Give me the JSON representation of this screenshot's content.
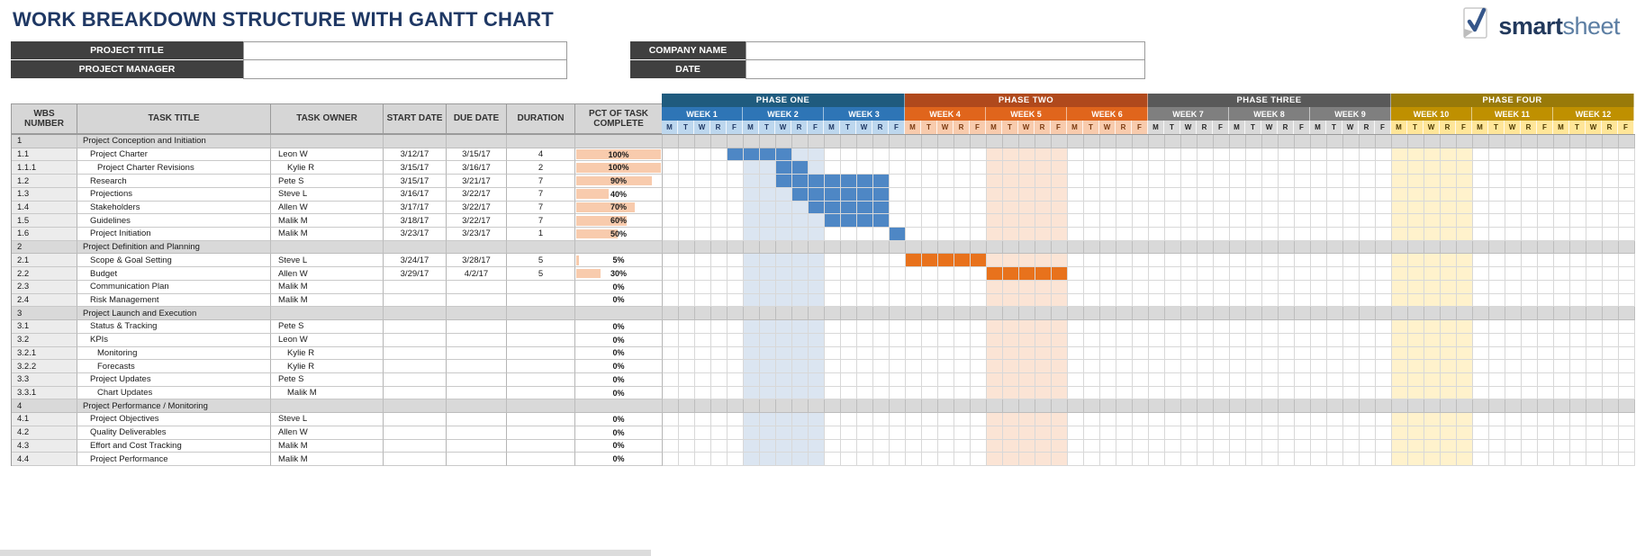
{
  "page": {
    "title": "WORK BREAKDOWN STRUCTURE WITH GANTT CHART"
  },
  "logo": {
    "brand_bold": "smart",
    "brand_light": "sheet",
    "icon": "checkmark-page-icon"
  },
  "info": {
    "left": [
      {
        "label": "PROJECT TITLE",
        "value": ""
      },
      {
        "label": "PROJECT MANAGER",
        "value": ""
      }
    ],
    "right": [
      {
        "label": "COMPANY NAME",
        "value": ""
      },
      {
        "label": "DATE",
        "value": ""
      }
    ]
  },
  "table": {
    "columns": [
      "WBS NUMBER",
      "TASK TITLE",
      "TASK OWNER",
      "START DATE",
      "DUE DATE",
      "DURATION",
      "PCT OF TASK COMPLETE"
    ]
  },
  "gantt": {
    "day_letters": [
      "M",
      "T",
      "W",
      "R",
      "F"
    ],
    "phases": [
      {
        "name": "PHASE ONE",
        "bar": "#1f5b7e",
        "week_bg": "#2e75b6",
        "day_bg": "#bdd7ee",
        "day_text": "#1f3864",
        "weeks": [
          "WEEK 1",
          "WEEK 2",
          "WEEK 3"
        ]
      },
      {
        "name": "PHASE TWO",
        "bar": "#b0491c",
        "week_bg": "#e0651c",
        "day_bg": "#f8cbad",
        "day_text": "#7b3a10",
        "weeks": [
          "WEEK 4",
          "WEEK 5",
          "WEEK 6"
        ]
      },
      {
        "name": "PHASE THREE",
        "bar": "#595959",
        "week_bg": "#7f7f7f",
        "day_bg": "#d9d9d9",
        "day_text": "#262626",
        "weeks": [
          "WEEK 7",
          "WEEK 8",
          "WEEK 9"
        ]
      },
      {
        "name": "PHASE FOUR",
        "bar": "#997a09",
        "week_bg": "#bf9000",
        "day_bg": "#ffe699",
        "day_text": "#4d3a00",
        "weeks": [
          "WEEK 10",
          "WEEK 11",
          "WEEK 12"
        ]
      }
    ],
    "bands": [
      {
        "start": 5,
        "end": 9,
        "color": "#dbe5f1"
      },
      {
        "start": 20,
        "end": 24,
        "color": "#fbe4d5"
      },
      {
        "start": 45,
        "end": 49,
        "color": "#fff2cc"
      }
    ]
  },
  "colors": {
    "title_text": "#1f3864",
    "label_cell_bg": "#404040",
    "header_cell_bg": "#d6d6d6",
    "section_row_bg": "#d9d9d9",
    "pct_bar": "#f8cbad",
    "gantt_blue": "#4e87c5",
    "gantt_orange": "#e8721c"
  },
  "rows": [
    {
      "wbs": "1",
      "title": "Project Conception and Initiation",
      "type": "section"
    },
    {
      "wbs": "1.1",
      "title": "Project Charter",
      "owner": "Leon W",
      "start": "3/12/17",
      "due": "3/15/17",
      "duration": "4",
      "pct": 100,
      "indent": 1,
      "seg": {
        "start": 4,
        "end": 7,
        "color": "#4e87c5"
      }
    },
    {
      "wbs": "1.1.1",
      "title": "Project Charter Revisions",
      "owner": "Kylie R",
      "start": "3/15/17",
      "due": "3/16/17",
      "duration": "2",
      "pct": 100,
      "indent": 2,
      "seg": {
        "start": 7,
        "end": 8,
        "color": "#4e87c5"
      }
    },
    {
      "wbs": "1.2",
      "title": "Research",
      "owner": "Pete S",
      "start": "3/15/17",
      "due": "3/21/17",
      "duration": "7",
      "pct": 90,
      "indent": 1,
      "seg": {
        "start": 7,
        "end": 13,
        "color": "#4e87c5"
      }
    },
    {
      "wbs": "1.3",
      "title": "Projections",
      "owner": "Steve L",
      "start": "3/16/17",
      "due": "3/22/17",
      "duration": "7",
      "pct": 40,
      "indent": 1,
      "seg": {
        "start": 8,
        "end": 13,
        "color": "#4e87c5"
      }
    },
    {
      "wbs": "1.4",
      "title": "Stakeholders",
      "owner": "Allen W",
      "start": "3/17/17",
      "due": "3/22/17",
      "duration": "7",
      "pct": 70,
      "indent": 1,
      "seg": {
        "start": 9,
        "end": 13,
        "color": "#4e87c5"
      }
    },
    {
      "wbs": "1.5",
      "title": "Guidelines",
      "owner": "Malik M",
      "start": "3/18/17",
      "due": "3/22/17",
      "duration": "7",
      "pct": 60,
      "indent": 1,
      "seg": {
        "start": 10,
        "end": 13,
        "color": "#4e87c5"
      }
    },
    {
      "wbs": "1.6",
      "title": "Project Initiation",
      "owner": "Malik M",
      "start": "3/23/17",
      "due": "3/23/17",
      "duration": "1",
      "pct": 50,
      "indent": 1,
      "seg": {
        "start": 14,
        "end": 14,
        "color": "#4e87c5"
      }
    },
    {
      "wbs": "2",
      "title": "Project Definition and Planning",
      "type": "section"
    },
    {
      "wbs": "2.1",
      "title": "Scope & Goal Setting",
      "owner": "Steve L",
      "start": "3/24/17",
      "due": "3/28/17",
      "duration": "5",
      "pct": 5,
      "indent": 1,
      "seg": {
        "start": 15,
        "end": 19,
        "color": "#e8721c"
      }
    },
    {
      "wbs": "2.2",
      "title": "Budget",
      "owner": "Allen W",
      "start": "3/29/17",
      "due": "4/2/17",
      "duration": "5",
      "pct": 30,
      "indent": 1,
      "seg": {
        "start": 20,
        "end": 24,
        "color": "#e8721c"
      }
    },
    {
      "wbs": "2.3",
      "title": "Communication Plan",
      "owner": "Malik M",
      "start": "",
      "due": "",
      "duration": "",
      "pct": 0,
      "indent": 1
    },
    {
      "wbs": "2.4",
      "title": "Risk Management",
      "owner": "Malik M",
      "start": "",
      "due": "",
      "duration": "",
      "pct": 0,
      "indent": 1
    },
    {
      "wbs": "3",
      "title": "Project Launch and Execution",
      "type": "section"
    },
    {
      "wbs": "3.1",
      "title": "Status & Tracking",
      "owner": "Pete S",
      "start": "",
      "due": "",
      "duration": "",
      "pct": 0,
      "indent": 1
    },
    {
      "wbs": "3.2",
      "title": "KPIs",
      "owner": "Leon W",
      "start": "",
      "due": "",
      "duration": "",
      "pct": 0,
      "indent": 1
    },
    {
      "wbs": "3.2.1",
      "title": "Monitoring",
      "owner": "Kylie R",
      "start": "",
      "due": "",
      "duration": "",
      "pct": 0,
      "indent": 2
    },
    {
      "wbs": "3.2.2",
      "title": "Forecasts",
      "owner": "Kylie R",
      "start": "",
      "due": "",
      "duration": "",
      "pct": 0,
      "indent": 2
    },
    {
      "wbs": "3.3",
      "title": "Project Updates",
      "owner": "Pete S",
      "start": "",
      "due": "",
      "duration": "",
      "pct": 0,
      "indent": 1
    },
    {
      "wbs": "3.3.1",
      "title": "Chart Updates",
      "owner": "Malik M",
      "start": "",
      "due": "",
      "duration": "",
      "pct": 0,
      "indent": 2
    },
    {
      "wbs": "4",
      "title": "Project Performance / Monitoring",
      "type": "section"
    },
    {
      "wbs": "4.1",
      "title": "Project Objectives",
      "owner": "Steve L",
      "start": "",
      "due": "",
      "duration": "",
      "pct": 0,
      "indent": 1
    },
    {
      "wbs": "4.2",
      "title": "Quality Deliverables",
      "owner": "Allen W",
      "start": "",
      "due": "",
      "duration": "",
      "pct": 0,
      "indent": 1
    },
    {
      "wbs": "4.3",
      "title": "Effort and Cost Tracking",
      "owner": "Malik M",
      "start": "",
      "due": "",
      "duration": "",
      "pct": 0,
      "indent": 1
    },
    {
      "wbs": "4.4",
      "title": "Project Performance",
      "owner": "Malik M",
      "start": "",
      "due": "",
      "duration": "",
      "pct": 0,
      "indent": 1
    }
  ]
}
